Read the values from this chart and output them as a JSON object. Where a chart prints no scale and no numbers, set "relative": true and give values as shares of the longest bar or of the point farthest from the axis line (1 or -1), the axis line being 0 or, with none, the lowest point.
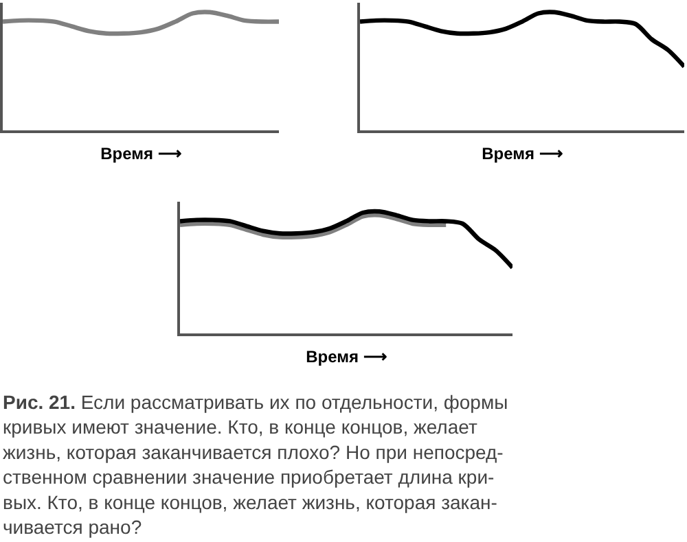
{
  "chart_data": [
    {
      "type": "line",
      "relative": true,
      "tick_labels": false,
      "xlabel": "Время ⟶",
      "categories": [
        null,
        null,
        null,
        null,
        null,
        null,
        null,
        null,
        null,
        null,
        null,
        null,
        null,
        null,
        null,
        null,
        null
      ],
      "series": [
        {
          "color": "#808080",
          "values": [
            0.92,
            0.93,
            0.93,
            0.92,
            0.88,
            0.84,
            0.82,
            0.82,
            0.83,
            0.86,
            0.92,
            0.99,
            1.0,
            0.97,
            0.93,
            0.92,
            0.92
          ]
        }
      ]
    },
    {
      "type": "line",
      "relative": true,
      "tick_labels": false,
      "xlabel": "Время ⟶",
      "categories": [
        null,
        null,
        null,
        null,
        null,
        null,
        null,
        null,
        null,
        null,
        null,
        null,
        null,
        null,
        null,
        null,
        null,
        null,
        null,
        null,
        null
      ],
      "series": [
        {
          "color": "#000000",
          "values": [
            0.92,
            0.93,
            0.93,
            0.92,
            0.88,
            0.84,
            0.82,
            0.82,
            0.83,
            0.86,
            0.92,
            0.99,
            1.0,
            0.97,
            0.93,
            0.92,
            0.92,
            0.9,
            0.77,
            0.68,
            0.54
          ]
        }
      ]
    },
    {
      "type": "line",
      "relative": true,
      "tick_labels": false,
      "xlabel": "Время ⟶",
      "categories": [
        null,
        null,
        null,
        null,
        null,
        null,
        null,
        null,
        null,
        null,
        null,
        null,
        null,
        null,
        null,
        null,
        null,
        null,
        null,
        null,
        null
      ],
      "series": [
        {
          "color": "#808080",
          "values": [
            0.89,
            0.9,
            0.9,
            0.89,
            0.85,
            0.81,
            0.79,
            0.79,
            0.8,
            0.83,
            0.89,
            0.96,
            0.97,
            0.94,
            0.9,
            0.89,
            0.89,
            null,
            null,
            null,
            null
          ]
        },
        {
          "color": "#000000",
          "values": [
            0.92,
            0.93,
            0.93,
            0.92,
            0.88,
            0.84,
            0.82,
            0.82,
            0.83,
            0.86,
            0.92,
            0.99,
            1.0,
            0.97,
            0.93,
            0.92,
            0.92,
            0.9,
            0.77,
            0.68,
            0.54
          ]
        }
      ],
      "annotations": [
        "Рис. 21.",
        "Если рассматривать их по отдельности, формы\nкривых имеют значение. Кто, в конце концов, желает\nжизнь, которая заканчивается плохо? Но при непосред-\nственном сравнении значение приобретает длина кри-\nвых. Кто, в конце концов, желает жизнь, которая закан-\nчивается рано?"
      ]
    }
  ]
}
